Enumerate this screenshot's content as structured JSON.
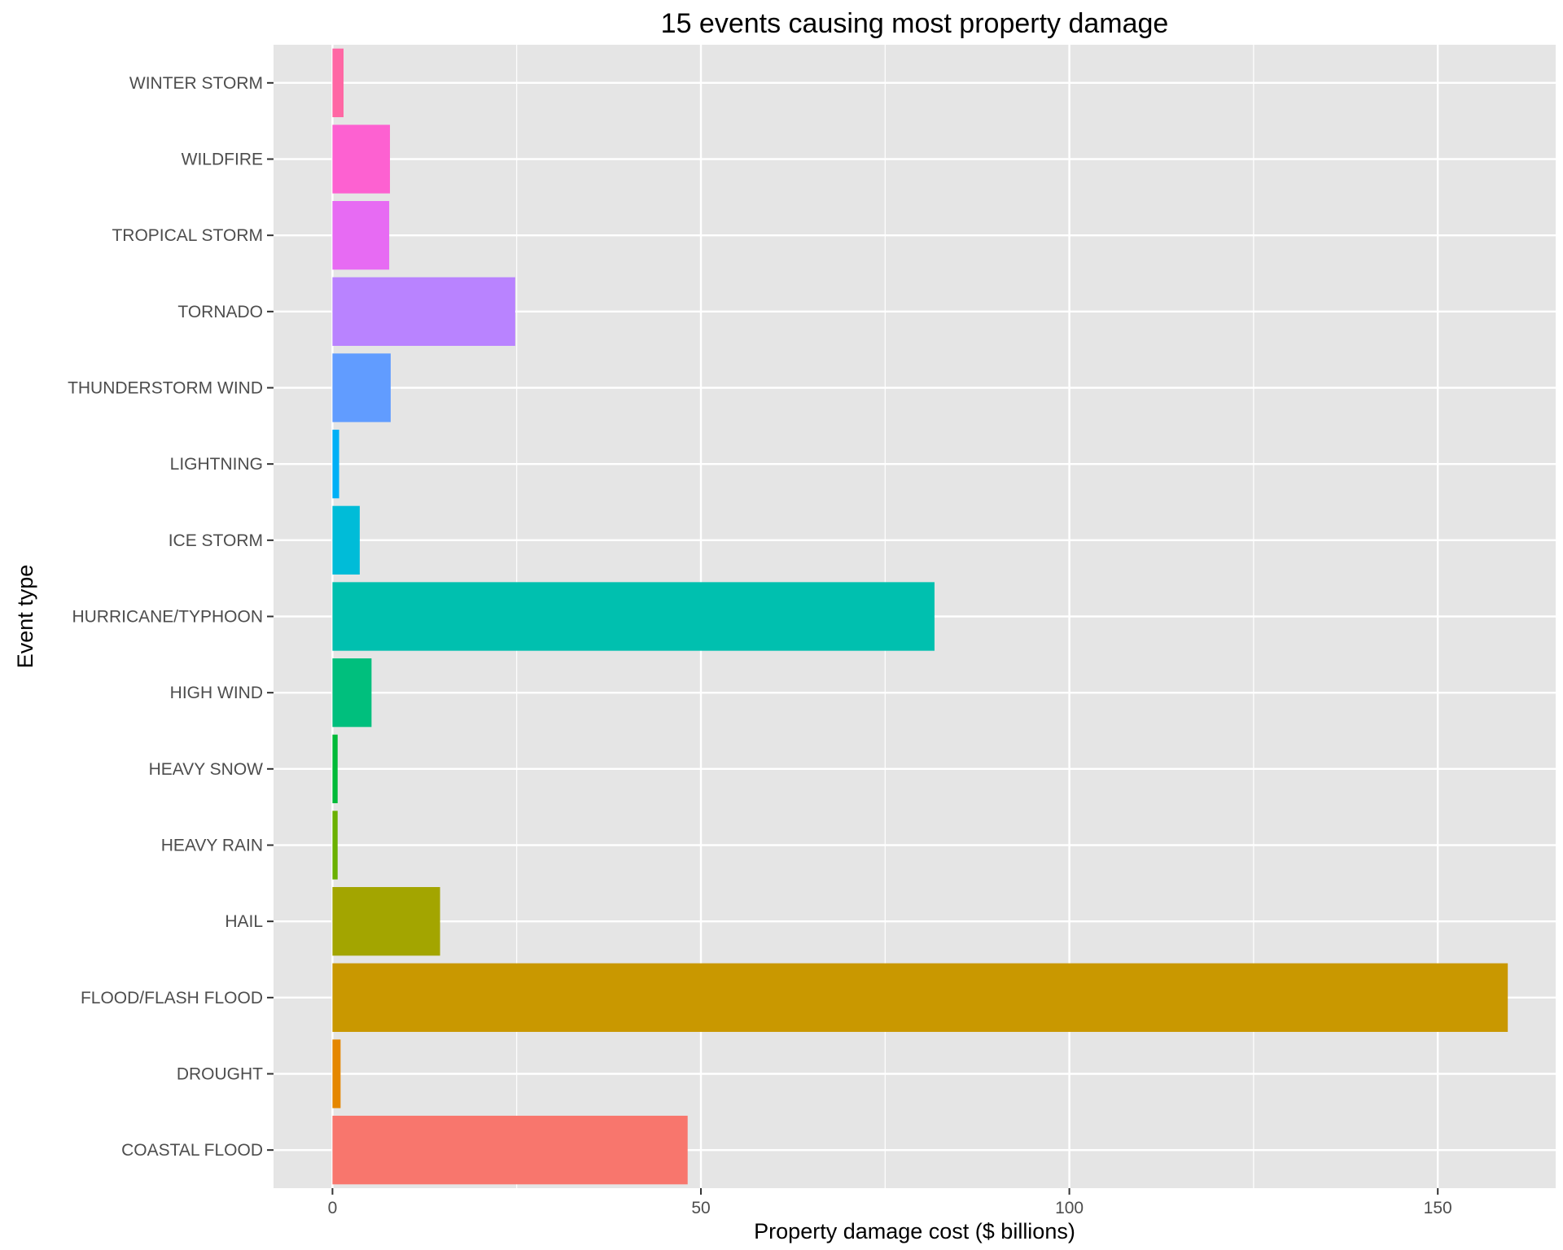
{
  "chart_data": {
    "type": "bar",
    "orientation": "horizontal",
    "title": "15 events causing most property damage",
    "xlabel": "Property damage cost ($ billions)",
    "ylabel": "Event type",
    "xlim": [
      -8,
      166
    ],
    "xticks": [
      0,
      50,
      100,
      150
    ],
    "categories": [
      "COASTAL FLOOD",
      "DROUGHT",
      "FLOOD/FLASH FLOOD",
      "HAIL",
      "HEAVY RAIN",
      "HEAVY SNOW",
      "HIGH WIND",
      "HURRICANE/TYPHOON",
      "ICE STORM",
      "LIGHTNING",
      "THUNDERSTORM WIND",
      "TORNADO",
      "TROPICAL STORM",
      "WILDFIRE",
      "WINTER STORM"
    ],
    "values": [
      48.2,
      1.1,
      159.5,
      14.6,
      0.7,
      0.7,
      5.3,
      81.7,
      3.7,
      0.9,
      7.9,
      24.8,
      7.7,
      7.8,
      1.5
    ],
    "colors": [
      "#F8766D",
      "#E58700",
      "#C99800",
      "#A3A500",
      "#6BB100",
      "#00BA38",
      "#00BF7D",
      "#00C0AF",
      "#00BCD8",
      "#00B0F6",
      "#619CFF",
      "#B983FF",
      "#E76BF3",
      "#FD61D1",
      "#FF67A4"
    ],
    "grid": true,
    "legend": "none",
    "panel_background": "#E5E5E5"
  }
}
